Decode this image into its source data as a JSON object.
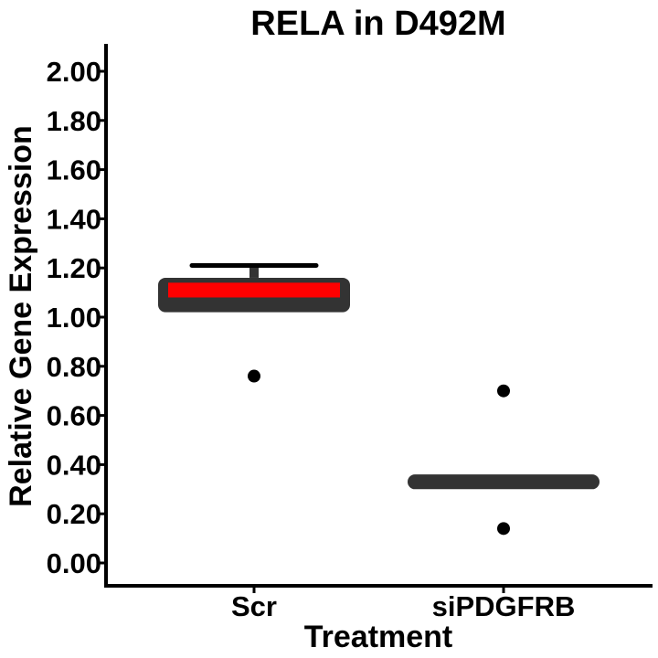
{
  "chart_data": {
    "type": "box",
    "title": "RELA in D492M",
    "xlabel": "Treatment",
    "ylabel": "Relative Gene Expression",
    "ylim": [
      -0.08,
      2.1
    ],
    "yticks": [
      "0.00",
      "0.20",
      "0.40",
      "0.60",
      "0.80",
      "1.00",
      "1.20",
      "1.40",
      "1.60",
      "1.80",
      "2.00"
    ],
    "categories": [
      "Scr",
      "siPDGFRB"
    ],
    "groups": [
      {
        "category": "Scr",
        "q1": 1.02,
        "median": 1.1,
        "q3": 1.16,
        "whisker_low": 1.02,
        "whisker_high": 1.21,
        "mean_bar": [
          1.08,
          1.14
        ],
        "outliers": [
          0.76
        ]
      },
      {
        "category": "siPDGFRB",
        "q1": 0.3,
        "median": 0.33,
        "q3": 0.36,
        "whisker_low": 0.3,
        "whisker_high": 0.36,
        "mean_bar": null,
        "outliers": [
          0.7,
          0.14
        ]
      }
    ],
    "colors": {
      "box": "#333333",
      "mean_bar": "#ff0000",
      "points": "#000000",
      "whisker": "#000000",
      "axis": "#000000"
    },
    "grid": false,
    "legend": "none"
  }
}
